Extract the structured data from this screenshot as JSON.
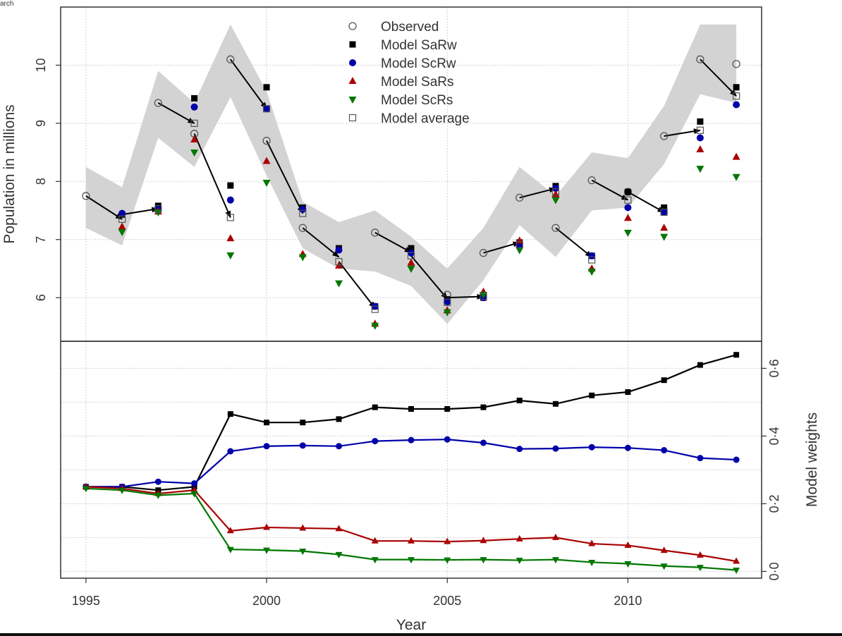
{
  "corner_label": "arch",
  "chart_data": [
    {
      "type": "scatter",
      "panel": "population",
      "ylabel": "Population in millions",
      "ylim": [
        5.25,
        11.0
      ],
      "yticks": [
        6,
        7,
        8,
        9,
        10
      ],
      "xlim": [
        1994.3,
        2013.7
      ],
      "grid": true,
      "legend_position": "top-center",
      "band_color": "#d3d3d3",
      "arrow_color": "#000000",
      "years": [
        1995,
        1996,
        1997,
        1998,
        1999,
        2000,
        2001,
        2002,
        2003,
        2004,
        2005,
        2006,
        2007,
        2008,
        2009,
        2010,
        2011,
        2012,
        2013
      ],
      "band_lower": [
        7.2,
        6.9,
        8.75,
        8.25,
        9.45,
        8.1,
        6.85,
        6.5,
        6.45,
        6.2,
        5.55,
        6.3,
        7.25,
        6.7,
        7.5,
        7.55,
        8.3,
        9.5,
        9.35
      ],
      "band_upper": [
        8.25,
        7.9,
        9.9,
        9.35,
        10.7,
        9.55,
        7.65,
        7.3,
        7.5,
        7.05,
        6.5,
        7.2,
        8.25,
        7.75,
        8.5,
        8.4,
        9.3,
        10.7,
        10.7
      ],
      "series": [
        {
          "name": "Observed",
          "marker": "open-circle",
          "color": "#555555",
          "values": [
            7.75,
            null,
            9.35,
            8.82,
            10.1,
            8.7,
            7.2,
            null,
            7.12,
            null,
            6.05,
            6.77,
            7.72,
            7.2,
            8.02,
            7.82,
            8.78,
            10.1,
            10.02
          ]
        },
        {
          "name": "Model SaRw",
          "marker": "filled-square",
          "color": "#000000",
          "values": [
            null,
            7.43,
            7.58,
            9.43,
            7.93,
            9.62,
            7.55,
            6.85,
            5.85,
            6.85,
            5.97,
            6.0,
            6.95,
            7.92,
            6.72,
            7.82,
            7.55,
            9.03,
            9.62
          ]
        },
        {
          "name": "Model ScRw",
          "marker": "filled-circle",
          "color": "#0000aa",
          "values": [
            null,
            7.45,
            7.52,
            9.28,
            7.68,
            9.25,
            7.52,
            6.82,
            5.85,
            6.77,
            5.93,
            6.0,
            6.9,
            7.88,
            6.72,
            7.55,
            7.47,
            8.75,
            9.32
          ]
        },
        {
          "name": "Model SaRs",
          "marker": "filled-triangle-up",
          "color": "#aa0000",
          "values": [
            null,
            7.22,
            7.48,
            8.72,
            7.02,
            8.35,
            6.75,
            6.55,
            5.55,
            6.6,
            5.78,
            6.1,
            6.98,
            7.78,
            6.5,
            7.37,
            7.2,
            8.55,
            8.42
          ]
        },
        {
          "name": "Model ScRs",
          "marker": "filled-triangle-down",
          "color": "#007700",
          "values": [
            null,
            7.13,
            7.47,
            8.5,
            6.73,
            7.98,
            6.7,
            6.25,
            5.52,
            6.5,
            5.75,
            6.05,
            6.82,
            7.68,
            6.45,
            7.12,
            7.05,
            8.22,
            8.08
          ]
        },
        {
          "name": "Model average",
          "marker": "open-square",
          "color": "#555555",
          "values": [
            null,
            7.35,
            7.53,
            9.0,
            7.38,
            9.25,
            7.45,
            6.62,
            5.8,
            6.72,
            5.92,
            6.02,
            6.91,
            7.82,
            6.65,
            7.68,
            7.47,
            8.88,
            9.47
          ]
        }
      ],
      "arrows": [
        {
          "from": [
            1995,
            7.75
          ],
          "to": [
            1996,
            7.35
          ]
        },
        {
          "from": [
            1996,
            7.43
          ],
          "to": [
            1997,
            7.53
          ]
        },
        {
          "from": [
            1997,
            9.35
          ],
          "to": [
            1998,
            9.0
          ]
        },
        {
          "from": [
            1998,
            8.82
          ],
          "to": [
            1999,
            7.38
          ]
        },
        {
          "from": [
            1999,
            10.1
          ],
          "to": [
            2000,
            9.25
          ]
        },
        {
          "from": [
            2000,
            8.7
          ],
          "to": [
            2001,
            7.45
          ]
        },
        {
          "from": [
            2001,
            7.2
          ],
          "to": [
            2002,
            6.7
          ]
        },
        {
          "from": [
            2002,
            6.62
          ],
          "to": [
            2003,
            5.82
          ]
        },
        {
          "from": [
            2003,
            7.12
          ],
          "to": [
            2004,
            6.78
          ]
        },
        {
          "from": [
            2004,
            6.72
          ],
          "to": [
            2005,
            5.98
          ]
        },
        {
          "from": [
            2005,
            6.0
          ],
          "to": [
            2006,
            6.02
          ]
        },
        {
          "from": [
            2006,
            6.77
          ],
          "to": [
            2007,
            6.95
          ]
        },
        {
          "from": [
            2007,
            7.72
          ],
          "to": [
            2008,
            7.88
          ]
        },
        {
          "from": [
            2008,
            7.2
          ],
          "to": [
            2009,
            6.7
          ]
        },
        {
          "from": [
            2009,
            8.02
          ],
          "to": [
            2010,
            7.68
          ]
        },
        {
          "from": [
            2010,
            7.82
          ],
          "to": [
            2011,
            7.47
          ]
        },
        {
          "from": [
            2011,
            8.78
          ],
          "to": [
            2012,
            8.88
          ]
        },
        {
          "from": [
            2012,
            10.1
          ],
          "to": [
            2013,
            9.47
          ]
        }
      ]
    },
    {
      "type": "line",
      "panel": "weights",
      "ylabel": "Model weights",
      "xlabel": "Year",
      "ylim": [
        -0.02,
        0.68
      ],
      "yticks": [
        0.0,
        0.2,
        0.4,
        0.6
      ],
      "ytick_labels": [
        "0·0",
        "0·2",
        "0·4",
        "0·6"
      ],
      "yaxis_side": "right",
      "xlim": [
        1994.3,
        2013.7
      ],
      "xticks": [
        1995,
        2000,
        2005,
        2010
      ],
      "grid": true,
      "years": [
        1995,
        1996,
        1997,
        1998,
        1999,
        2000,
        2001,
        2002,
        2003,
        2004,
        2005,
        2006,
        2007,
        2008,
        2009,
        2010,
        2011,
        2012,
        2013
      ],
      "series": [
        {
          "name": "Model SaRw",
          "marker": "filled-square",
          "color": "#000000",
          "values": [
            0.25,
            0.25,
            0.24,
            0.25,
            0.465,
            0.44,
            0.44,
            0.45,
            0.485,
            0.48,
            0.48,
            0.485,
            0.505,
            0.495,
            0.52,
            0.53,
            0.565,
            0.61,
            0.64
          ]
        },
        {
          "name": "Model ScRw",
          "marker": "filled-circle",
          "color": "#0000aa",
          "values": [
            0.25,
            0.25,
            0.265,
            0.26,
            0.355,
            0.37,
            0.372,
            0.37,
            0.385,
            0.388,
            0.39,
            0.38,
            0.362,
            0.363,
            0.367,
            0.365,
            0.358,
            0.335,
            0.33
          ]
        },
        {
          "name": "Model SaRs",
          "marker": "filled-triangle-up",
          "color": "#aa0000",
          "values": [
            0.25,
            0.245,
            0.23,
            0.24,
            0.12,
            0.13,
            0.128,
            0.126,
            0.09,
            0.09,
            0.088,
            0.091,
            0.096,
            0.1,
            0.082,
            0.077,
            0.062,
            0.048,
            0.03
          ]
        },
        {
          "name": "Model ScRs",
          "marker": "filled-triangle-down",
          "color": "#007700",
          "values": [
            0.245,
            0.24,
            0.225,
            0.23,
            0.065,
            0.063,
            0.06,
            0.05,
            0.035,
            0.035,
            0.034,
            0.035,
            0.033,
            0.035,
            0.027,
            0.023,
            0.016,
            0.012,
            0.004
          ]
        }
      ]
    }
  ]
}
